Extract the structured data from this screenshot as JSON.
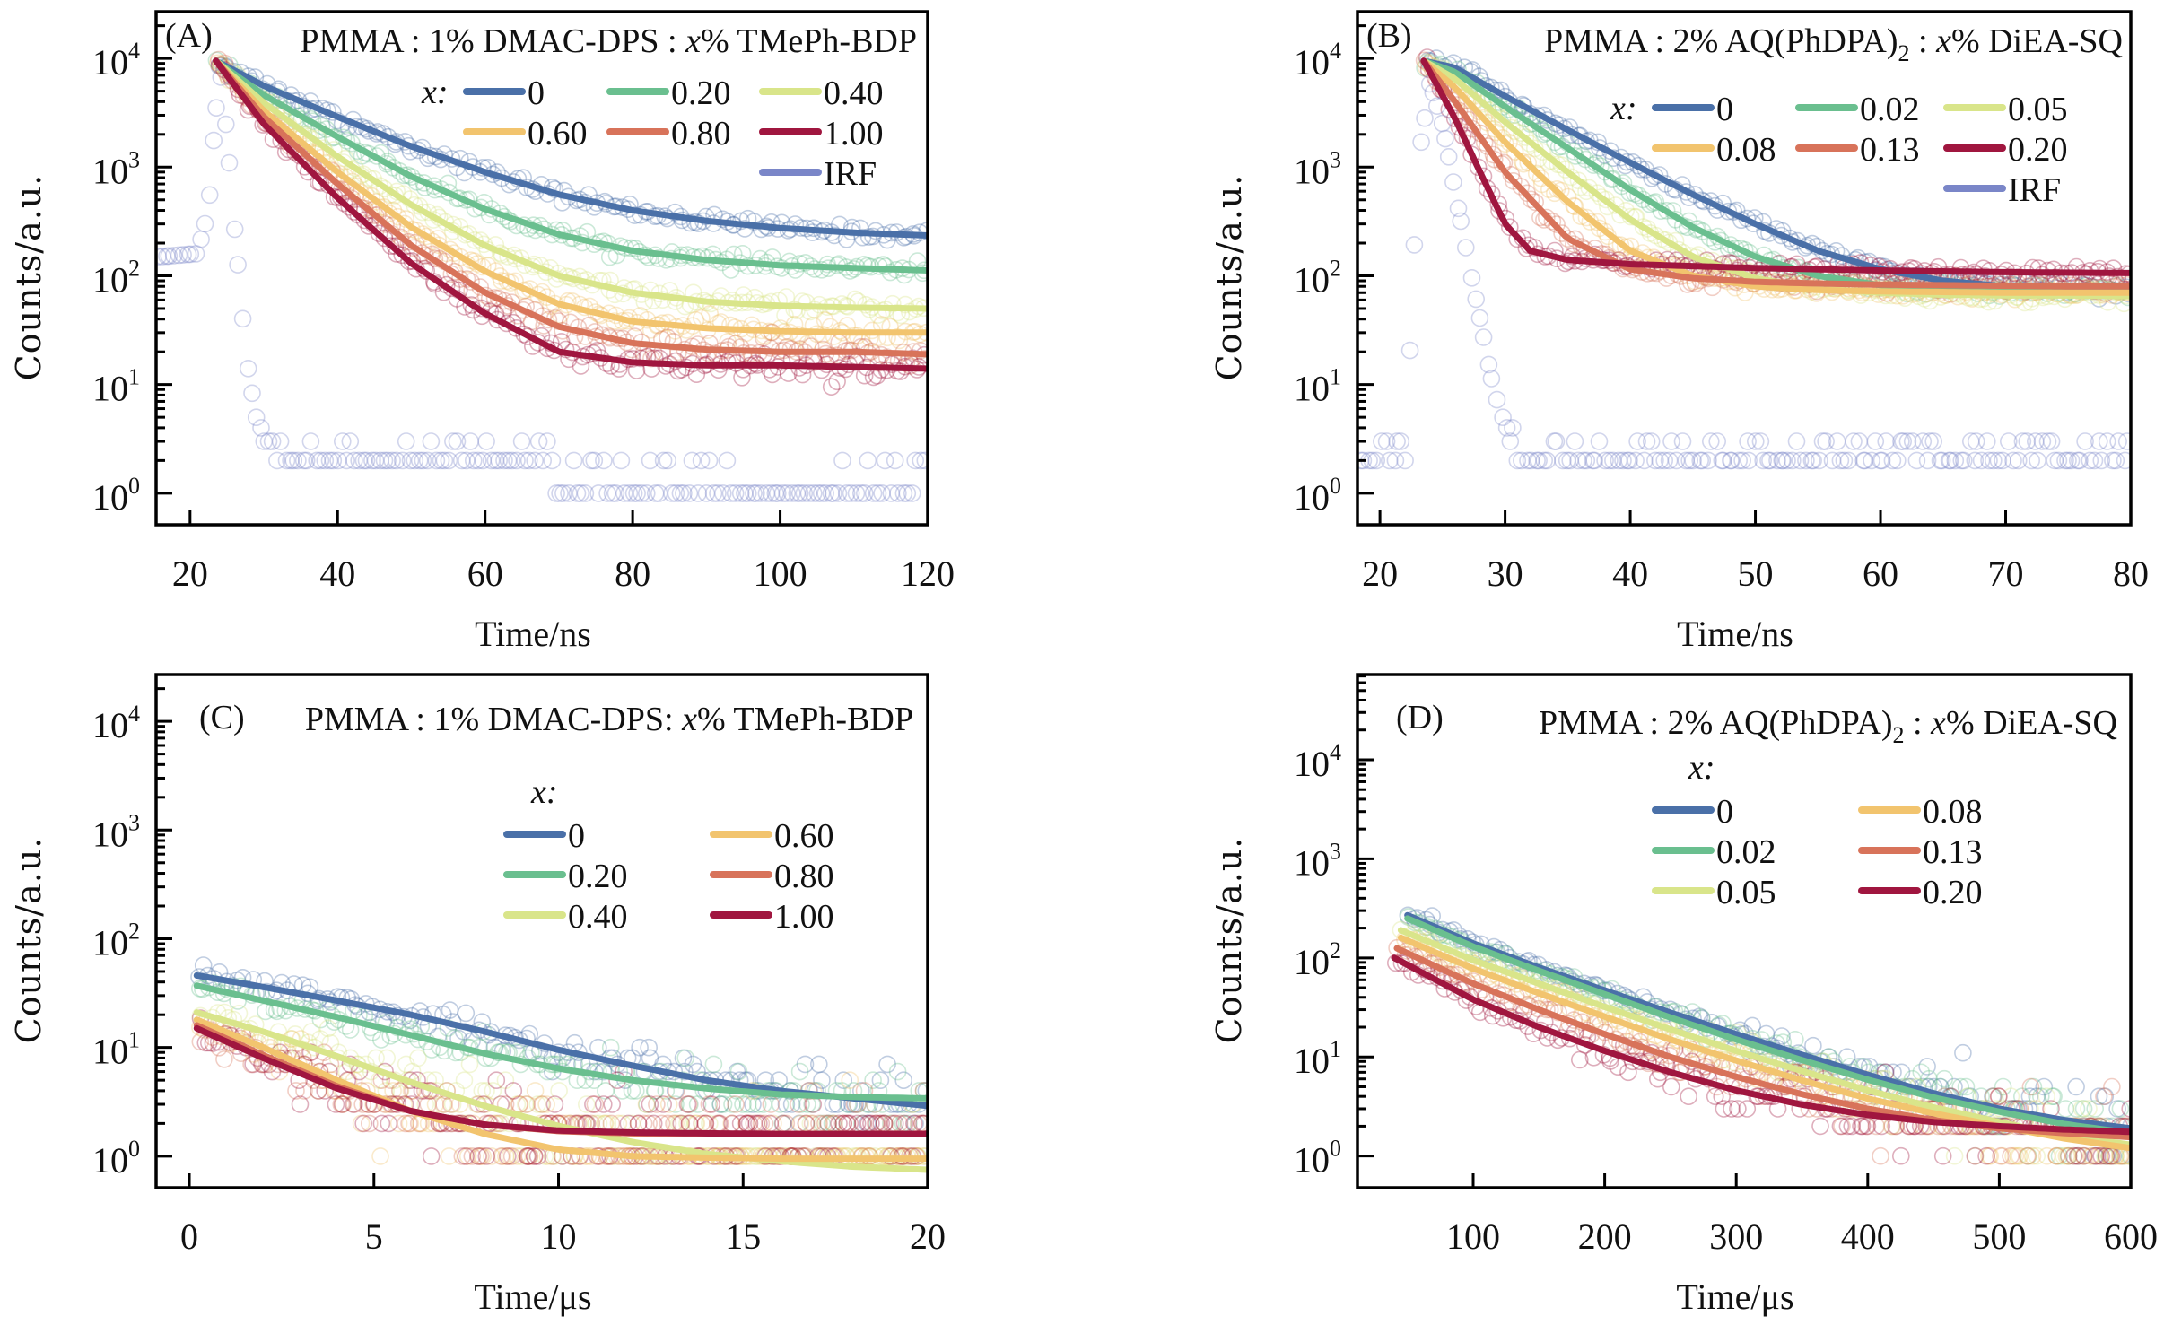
{
  "figure": {
    "panels": [
      "A",
      "B",
      "C",
      "D"
    ]
  },
  "chart_data": [
    {
      "type": "scatter",
      "panel_label": "(A)",
      "title": "PMMA : 1% DMAC-DPS : x% TMePh-BDP",
      "title_parts": {
        "pre": "PMMA : 1% DMAC-DPS : ",
        "italic": "x",
        "post": "% TMePh-BDP"
      },
      "xlabel": "Time/ns",
      "ylabel": "Counts/a.u.",
      "yscale": "log",
      "xlim": [
        15.4,
        120
      ],
      "ylim_log10": [
        -0.29,
        4.43
      ],
      "xticks": [
        20,
        40,
        60,
        80,
        100,
        120
      ],
      "yticks": [
        {
          "value": 1,
          "label": "10",
          "exp": "0"
        },
        {
          "value": 10,
          "label": "10",
          "exp": "1"
        },
        {
          "value": 100,
          "label": "10",
          "exp": "2"
        },
        {
          "value": 1000,
          "label": "10",
          "exp": "3"
        },
        {
          "value": 10000,
          "label": "10",
          "exp": "4"
        }
      ],
      "legend_title": "x:",
      "legend_layout": "3col",
      "legend_position": "top-right",
      "series": [
        {
          "name": "0",
          "color": "#4a70a8",
          "t": [
            23.5,
            30,
            40,
            50,
            60,
            70,
            80,
            90,
            100,
            110,
            120
          ],
          "y": [
            9500,
            5600,
            2900,
            1550,
            900,
            560,
            400,
            320,
            275,
            250,
            235
          ]
        },
        {
          "name": "0.20",
          "color": "#6abf8f",
          "t": [
            23.5,
            30,
            40,
            50,
            60,
            70,
            80,
            90,
            100,
            110,
            120
          ],
          "y": [
            9500,
            4600,
            1900,
            820,
            410,
            240,
            170,
            140,
            125,
            118,
            112
          ]
        },
        {
          "name": "0.40",
          "color": "#d9e58a",
          "t": [
            23.5,
            30,
            40,
            50,
            60,
            70,
            80,
            90,
            100,
            110,
            120
          ],
          "y": [
            9500,
            3900,
            1250,
            450,
            190,
            100,
            70,
            58,
            53,
            51,
            50
          ]
        },
        {
          "name": "0.60",
          "color": "#f2c46e",
          "t": [
            23.5,
            30,
            40,
            50,
            60,
            70,
            80,
            90,
            100,
            110,
            120
          ],
          "y": [
            9500,
            3300,
            900,
            280,
            110,
            55,
            38,
            33,
            31,
            30,
            30
          ]
        },
        {
          "name": "0.80",
          "color": "#d8735a",
          "t": [
            23.5,
            30,
            40,
            50,
            60,
            70,
            80,
            90,
            100,
            110,
            120
          ],
          "y": [
            9500,
            2900,
            700,
            190,
            70,
            34,
            24,
            21,
            20,
            20,
            19
          ]
        },
        {
          "name": "1.00",
          "color": "#a0163f",
          "t": [
            23.5,
            30,
            40,
            50,
            60,
            70,
            80,
            90,
            100,
            110,
            120
          ],
          "y": [
            9500,
            2500,
            520,
            130,
            45,
            20,
            16,
            15,
            15,
            14.5,
            14
          ]
        }
      ],
      "irf": {
        "name": "IRF",
        "color": "#7a86c8",
        "t": [
          16,
          21,
          22.5,
          24,
          25,
          26,
          27,
          28,
          29,
          30,
          32,
          120
        ],
        "y": [
          150,
          160,
          400,
          9000,
          2000,
          300,
          50,
          12,
          5,
          3,
          2,
          1
        ]
      }
    },
    {
      "type": "scatter",
      "panel_label": "(B)",
      "title": "PMMA : 2% AQ(PhDPA)2 : x% DiEA-SQ",
      "title_parts": {
        "pre": "PMMA : 2% AQ(PhDPA)",
        "sub": "2",
        "mid": " : ",
        "italic": "x",
        "post": "% DiEA-SQ"
      },
      "xlabel": "Time/ns",
      "ylabel": "Counts/a.u.",
      "yscale": "log",
      "xlim": [
        18.2,
        80
      ],
      "ylim_log10": [
        -0.29,
        4.43
      ],
      "xticks": [
        20,
        30,
        40,
        50,
        60,
        70,
        80
      ],
      "yticks": [
        {
          "value": 1,
          "label": "10",
          "exp": "0"
        },
        {
          "value": 10,
          "label": "10",
          "exp": "1"
        },
        {
          "value": 100,
          "label": "10",
          "exp": "2"
        },
        {
          "value": 1000,
          "label": "10",
          "exp": "3"
        },
        {
          "value": 10000,
          "label": "10",
          "exp": "4"
        }
      ],
      "legend_title": "x:",
      "legend_layout": "3col",
      "legend_position": "top-right",
      "series": [
        {
          "name": "0",
          "color": "#4a70a8",
          "t": [
            23.5,
            26,
            30,
            35,
            40,
            45,
            50,
            55,
            60,
            65,
            70,
            75,
            80
          ],
          "y": [
            9500,
            8200,
            4500,
            2200,
            1100,
            560,
            300,
            170,
            115,
            90,
            80,
            78,
            76
          ]
        },
        {
          "name": "0.02",
          "color": "#6abf8f",
          "t": [
            23.5,
            26,
            30,
            35,
            40,
            45,
            50,
            55,
            60,
            65,
            70,
            75,
            80
          ],
          "y": [
            9500,
            7500,
            3600,
            1500,
            620,
            280,
            150,
            100,
            82,
            76,
            73,
            72,
            71
          ]
        },
        {
          "name": "0.05",
          "color": "#d9e58a",
          "t": [
            23.5,
            26,
            30,
            35,
            40,
            45,
            50,
            55,
            60,
            65,
            70,
            75,
            80
          ],
          "y": [
            9500,
            6500,
            2600,
            900,
            330,
            150,
            95,
            76,
            70,
            67,
            66,
            66,
            65
          ]
        },
        {
          "name": "0.08",
          "color": "#f2c46e",
          "t": [
            23.5,
            26,
            30,
            35,
            40,
            45,
            50,
            55,
            60,
            65,
            70,
            75,
            80
          ],
          "y": [
            9500,
            5400,
            1700,
            480,
            170,
            100,
            80,
            74,
            72,
            71,
            70,
            70,
            70
          ]
        },
        {
          "name": "0.13",
          "color": "#d8735a",
          "t": [
            23.5,
            26,
            30,
            35,
            40,
            45,
            50,
            55,
            60,
            65,
            70,
            75,
            80
          ],
          "y": [
            9500,
            4000,
            900,
            220,
            115,
            95,
            88,
            85,
            83,
            82,
            81,
            80,
            80
          ]
        },
        {
          "name": "0.20",
          "color": "#a0163f",
          "t": [
            23.5,
            26,
            28,
            30,
            32,
            35,
            40,
            50,
            60,
            70,
            80
          ],
          "y": [
            9500,
            2800,
            900,
            300,
            170,
            140,
            128,
            118,
            112,
            108,
            106
          ]
        }
      ],
      "irf": {
        "name": "IRF",
        "color": "#7a86c8",
        "t": [
          19,
          22,
          23,
          24,
          25,
          26,
          27,
          28,
          29,
          30,
          31,
          80
        ],
        "y": [
          1.5,
          1.5,
          1000,
          6000,
          2500,
          600,
          150,
          40,
          10,
          4,
          2,
          1.5
        ]
      }
    },
    {
      "type": "scatter",
      "panel_label": "(C)",
      "title": "PMMA : 1% DMAC-DPS: x% TMePh-BDP",
      "title_parts": {
        "pre": "PMMA : 1% DMAC-DPS: ",
        "italic": "x",
        "post": "% TMePh-BDP"
      },
      "xlabel": "Time/μs",
      "ylabel": "Counts/a.u.",
      "yscale": "log",
      "xlim": [
        -0.9,
        20
      ],
      "ylim_log10": [
        -0.29,
        4.43
      ],
      "xticks": [
        0,
        5,
        10,
        15,
        20
      ],
      "yticks": [
        {
          "value": 1,
          "label": "10",
          "exp": "0"
        },
        {
          "value": 10,
          "label": "10",
          "exp": "1"
        },
        {
          "value": 100,
          "label": "10",
          "exp": "2"
        },
        {
          "value": 1000,
          "label": "10",
          "exp": "3"
        },
        {
          "value": 10000,
          "label": "10",
          "exp": "4"
        }
      ],
      "legend_title": "x:",
      "legend_layout": "2col",
      "legend_position": "upper-right",
      "series": [
        {
          "name": "0",
          "color": "#4a70a8",
          "t": [
            0.2,
            2,
            4,
            6,
            8,
            10,
            12,
            14,
            16,
            18,
            20
          ],
          "y": [
            46,
            36,
            27,
            20,
            14,
            9.5,
            6.8,
            5.0,
            4.0,
            3.4,
            2.9
          ]
        },
        {
          "name": "0.20",
          "color": "#6abf8f",
          "t": [
            0.2,
            2,
            4,
            6,
            8,
            10,
            12,
            14,
            16,
            18,
            20
          ],
          "y": [
            37,
            27,
            19,
            13,
            8.8,
            6.4,
            5.0,
            4.2,
            3.7,
            3.5,
            3.4
          ]
        },
        {
          "name": "0.40",
          "color": "#d9e58a",
          "t": [
            0.2,
            2,
            4,
            6,
            8,
            10,
            12,
            14,
            16,
            18,
            20
          ],
          "y": [
            21,
            14,
            8.3,
            4.8,
            2.9,
            1.9,
            1.35,
            1.05,
            0.9,
            0.8,
            0.75
          ]
        },
        {
          "name": "0.60",
          "color": "#f2c46e",
          "t": [
            0.2,
            2,
            4,
            6,
            8,
            10,
            12,
            14,
            16,
            18,
            20
          ],
          "y": [
            18,
            10,
            5,
            2.6,
            1.6,
            1.15,
            1.0,
            0.97,
            0.95,
            0.95,
            0.95
          ]
        },
        {
          "name": "0.80",
          "color": "#d8735a",
          "t": [
            0.2,
            2,
            4,
            6,
            8,
            10,
            12,
            14,
            16,
            18,
            20
          ],
          "y": [
            16,
            8.5,
            4.4,
            2.6,
            1.95,
            1.7,
            1.62,
            1.6,
            1.6,
            1.6,
            1.6
          ]
        },
        {
          "name": "1.00",
          "color": "#a0163f",
          "t": [
            0.2,
            2,
            4,
            6,
            8,
            10,
            12,
            14,
            16,
            18,
            20
          ],
          "y": [
            15,
            8,
            4.2,
            2.6,
            1.95,
            1.72,
            1.65,
            1.62,
            1.6,
            1.6,
            1.6
          ]
        }
      ]
    },
    {
      "type": "scatter",
      "panel_label": "(D)",
      "title": "PMMA : 2% AQ(PhDPA)2 : x% DiEA-SQ",
      "title_parts": {
        "pre": "PMMA : 2% AQ(PhDPA)",
        "sub": "2",
        "mid": " : ",
        "italic": "x",
        "post": "% DiEA-SQ"
      },
      "xlabel": "Time/μs",
      "ylabel": "Counts/a.u.",
      "yscale": "log",
      "xlim": [
        12,
        600
      ],
      "ylim_log10": [
        -0.32,
        4.86
      ],
      "xticks": [
        100,
        200,
        300,
        400,
        500,
        600
      ],
      "yticks": [
        {
          "value": 1,
          "label": "10",
          "exp": "0"
        },
        {
          "value": 10,
          "label": "10",
          "exp": "1"
        },
        {
          "value": 100,
          "label": "10",
          "exp": "2"
        },
        {
          "value": 1000,
          "label": "10",
          "exp": "3"
        },
        {
          "value": 10000,
          "label": "10",
          "exp": "4"
        }
      ],
      "legend_title": "x:",
      "legend_layout": "2col",
      "legend_position": "upper-right",
      "series": [
        {
          "name": "0",
          "color": "#4a70a8",
          "t": [
            50,
            100,
            150,
            200,
            250,
            300,
            350,
            400,
            450,
            500,
            550,
            600
          ],
          "y": [
            270,
            140,
            80,
            47,
            28,
            17,
            10.5,
            6.6,
            4.3,
            3.0,
            2.3,
            1.9
          ]
        },
        {
          "name": "0.02",
          "color": "#6abf8f",
          "t": [
            50,
            100,
            150,
            200,
            250,
            300,
            350,
            400,
            450,
            500,
            550,
            600
          ],
          "y": [
            250,
            130,
            74,
            43,
            25,
            15,
            9.3,
            5.9,
            3.9,
            2.8,
            2.1,
            1.7
          ]
        },
        {
          "name": "0.05",
          "color": "#d9e58a",
          "t": [
            45,
            100,
            150,
            200,
            250,
            300,
            350,
            400,
            450,
            500,
            550,
            600
          ],
          "y": [
            190,
            95,
            55,
            32,
            19,
            11.5,
            7.2,
            4.6,
            3.1,
            2.2,
            1.6,
            1.3
          ]
        },
        {
          "name": "0.08",
          "color": "#f2c46e",
          "t": [
            45,
            100,
            150,
            200,
            250,
            300,
            350,
            400,
            450,
            500,
            550,
            600
          ],
          "y": [
            160,
            78,
            44,
            25.5,
            15,
            9.2,
            5.8,
            3.8,
            2.7,
            2.0,
            1.5,
            1.2
          ]
        },
        {
          "name": "0.13",
          "color": "#d8735a",
          "t": [
            42,
            100,
            150,
            200,
            250,
            300,
            350,
            400,
            450,
            500,
            550,
            600
          ],
          "y": [
            125,
            55,
            30,
            17,
            10,
            6.3,
            4.2,
            3.0,
            2.3,
            1.9,
            1.7,
            1.55
          ]
        },
        {
          "name": "0.20",
          "color": "#a0163f",
          "t": [
            40,
            100,
            150,
            200,
            250,
            300,
            350,
            400,
            450,
            500,
            550,
            600
          ],
          "y": [
            100,
            38,
            20,
            11.5,
            7.0,
            4.6,
            3.3,
            2.6,
            2.2,
            2.0,
            1.85,
            1.75
          ]
        }
      ]
    }
  ]
}
